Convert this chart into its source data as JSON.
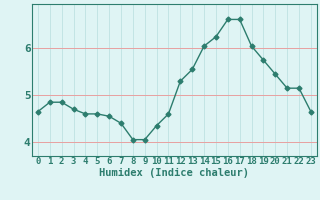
{
  "x": [
    0,
    1,
    2,
    3,
    4,
    5,
    6,
    7,
    8,
    9,
    10,
    11,
    12,
    13,
    14,
    15,
    16,
    17,
    18,
    19,
    20,
    21,
    22,
    23
  ],
  "y": [
    4.65,
    4.85,
    4.85,
    4.7,
    4.6,
    4.6,
    4.55,
    4.4,
    4.05,
    4.05,
    4.35,
    4.6,
    5.3,
    5.55,
    6.05,
    6.25,
    6.62,
    6.62,
    6.05,
    5.75,
    5.45,
    5.15,
    5.15,
    4.65
  ],
  "line_color": "#2d7d6e",
  "marker": "D",
  "marker_size": 2.5,
  "bg_color": "#dff4f4",
  "grid_color_major": "#e8a0a0",
  "grid_color_minor": "#b8dede",
  "xlabel": "Humidex (Indice chaleur)",
  "yticks": [
    4,
    5,
    6
  ],
  "ylim": [
    3.7,
    6.95
  ],
  "xlim": [
    -0.5,
    23.5
  ],
  "label_color": "#2d7d6e",
  "tick_color": "#2d7d6e",
  "xlabel_fontsize": 7.5,
  "tick_fontsize": 6.5,
  "ytick_fontsize": 8,
  "linewidth": 1.0
}
